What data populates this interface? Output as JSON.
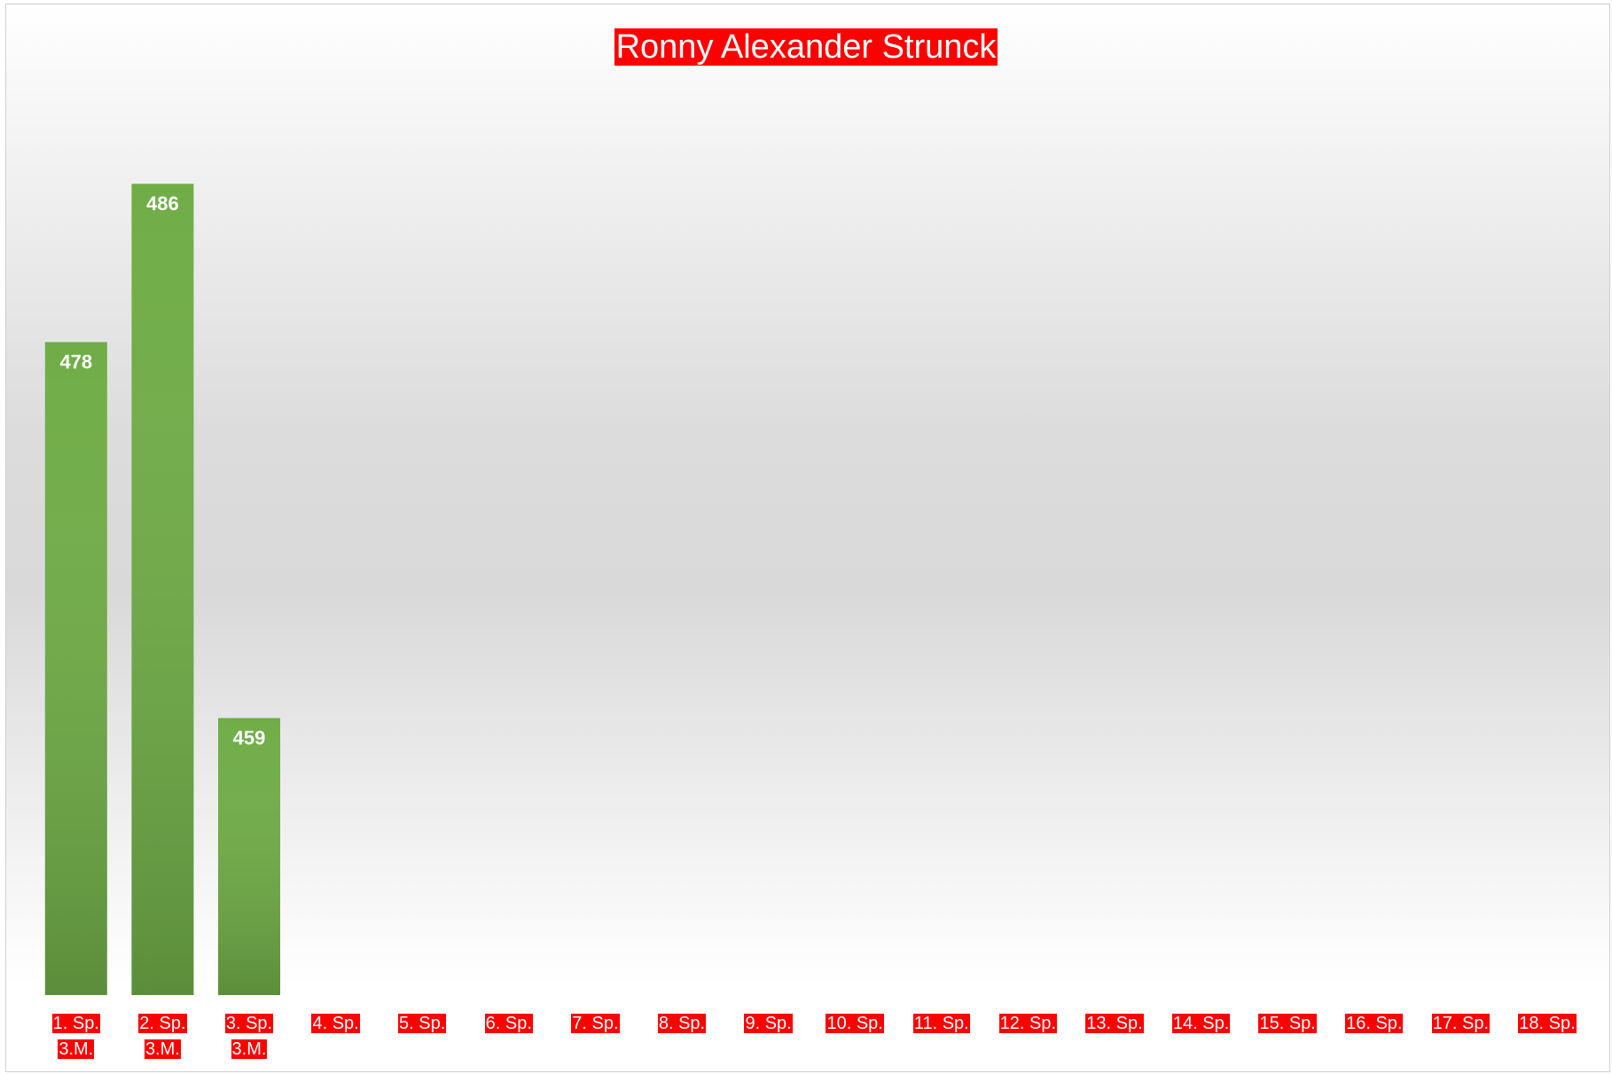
{
  "chart_data": {
    "type": "bar",
    "title": "Ronny Alexander Strunck",
    "categories": [
      "1. Sp.\n3.M.",
      "2. Sp.\n3.M.",
      "3. Sp.\n3.M.",
      "4. Sp.",
      "5. Sp.",
      "6. Sp.",
      "7. Sp.",
      "8. Sp.",
      "9. Sp.",
      "10. Sp.",
      "11. Sp.",
      "12. Sp.",
      "13. Sp.",
      "14. Sp.",
      "15. Sp.",
      "16. Sp.",
      "17. Sp.",
      "18. Sp."
    ],
    "values": [
      478,
      486,
      459,
      null,
      null,
      null,
      null,
      null,
      null,
      null,
      null,
      null,
      null,
      null,
      null,
      null,
      null,
      null
    ],
    "color": "#70ad47",
    "ylim": [
      445,
      490
    ]
  }
}
